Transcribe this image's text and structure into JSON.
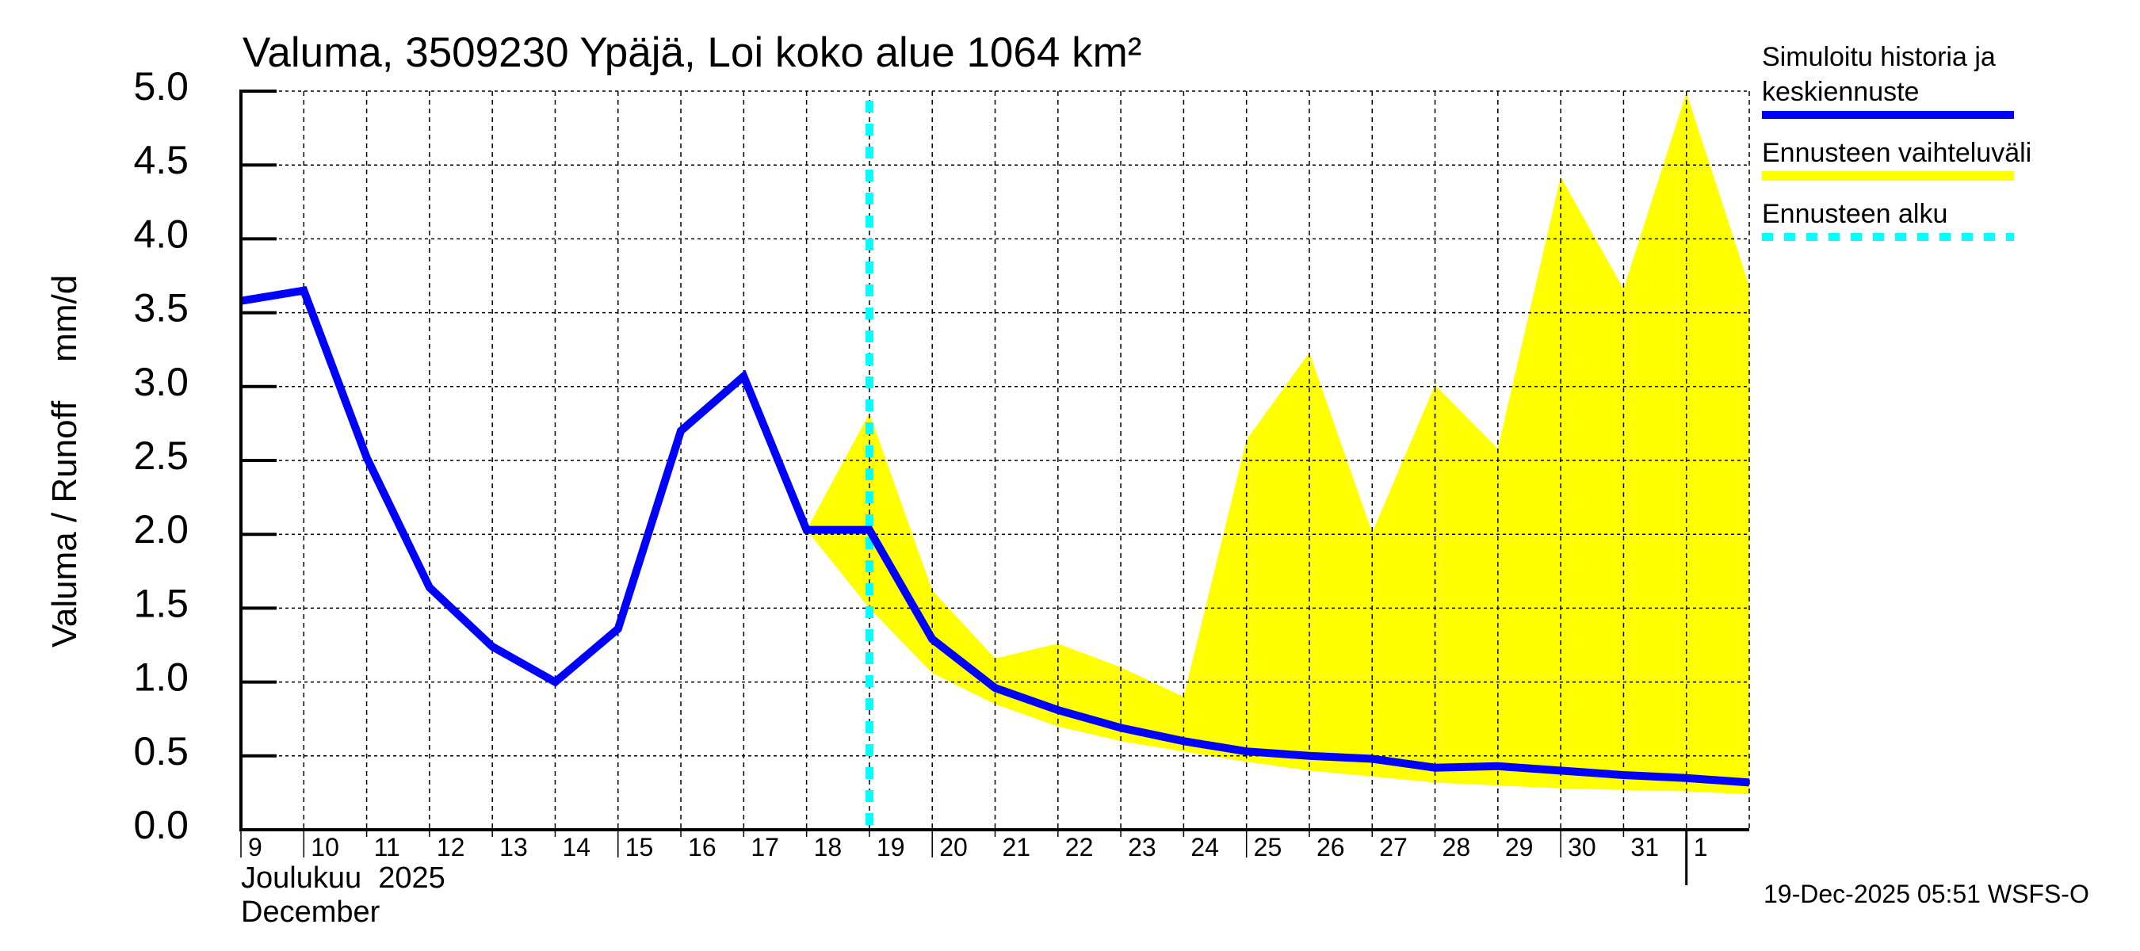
{
  "chart_data": {
    "type": "line",
    "title": "Valuma, 3509230 Ypäjä, Loi koko alue 1064 km²",
    "ylabel": "Valuma / Runoff    mm/d",
    "xlabel": "Joulukuu  2025 / December",
    "month_label_fi": "Joulukuu  2025",
    "month_label_en": "December",
    "ylim": [
      0,
      5
    ],
    "yticks": [
      "0.0",
      "0.5",
      "1.0",
      "1.5",
      "2.0",
      "2.5",
      "3.0",
      "3.5",
      "4.0",
      "4.5",
      "5.0"
    ],
    "grid": true,
    "x_tick_labels": [
      "9",
      "10",
      "11",
      "12",
      "13",
      "14",
      "15",
      "16",
      "17",
      "18",
      "19",
      "20",
      "21",
      "22",
      "23",
      "24",
      "25",
      "26",
      "27",
      "28",
      "29",
      "30",
      "31",
      "1"
    ],
    "x": [
      "2025-12-09",
      "2025-12-10",
      "2025-12-11",
      "2025-12-12",
      "2025-12-13",
      "2025-12-14",
      "2025-12-15",
      "2025-12-16",
      "2025-12-17",
      "2025-12-18",
      "2025-12-19",
      "2025-12-20",
      "2025-12-21",
      "2025-12-22",
      "2025-12-23",
      "2025-12-24",
      "2025-12-25",
      "2025-12-26",
      "2025-12-27",
      "2025-12-28",
      "2025-12-29",
      "2025-12-30",
      "2025-12-31",
      "2026-01-01",
      "2026-01-02"
    ],
    "forecast_start": "2025-12-19",
    "forecast_start_index": 10,
    "series": [
      {
        "name": "Simuloitu historia ja keskiennuste",
        "type": "line",
        "color": "#0000ff",
        "start_index": 0,
        "values": [
          3.58,
          3.65,
          2.52,
          1.64,
          1.24,
          1.0,
          1.36,
          2.7,
          3.07,
          2.03,
          2.03,
          1.29,
          0.96,
          0.81,
          0.69,
          0.6,
          0.53,
          0.5,
          0.48,
          0.42,
          0.43,
          0.4,
          0.37,
          0.35,
          0.32
        ]
      },
      {
        "name": "Ennusteen vaihteluväli",
        "type": "area-band",
        "color": "#ffff00",
        "start_index": 9,
        "upper": [
          2.03,
          2.82,
          1.62,
          1.16,
          1.26,
          1.1,
          0.9,
          2.64,
          3.23,
          2.01,
          3.01,
          2.58,
          4.42,
          3.66,
          4.99,
          3.68
        ],
        "lower": [
          2.03,
          1.5,
          1.06,
          0.85,
          0.7,
          0.6,
          0.53,
          0.46,
          0.4,
          0.36,
          0.32,
          0.3,
          0.28,
          0.27,
          0.26,
          0.24
        ]
      },
      {
        "name": "Ennusteen alku",
        "type": "vline",
        "color": "#00ffff",
        "index": 10
      }
    ],
    "legend": {
      "position": "right",
      "items": [
        {
          "lines": [
            "Simuloitu historia ja",
            "keskiennuste"
          ],
          "color": "#0000ff",
          "style": "solid"
        },
        {
          "lines": [
            "Ennusteen vaihteluväli"
          ],
          "color": "#ffff00",
          "style": "solid"
        },
        {
          "lines": [
            "Ennusteen alku"
          ],
          "color": "#00ffff",
          "style": "dashed"
        }
      ]
    }
  },
  "footer": {
    "timestamp": "19-Dec-2025 05:51 WSFS-O"
  }
}
